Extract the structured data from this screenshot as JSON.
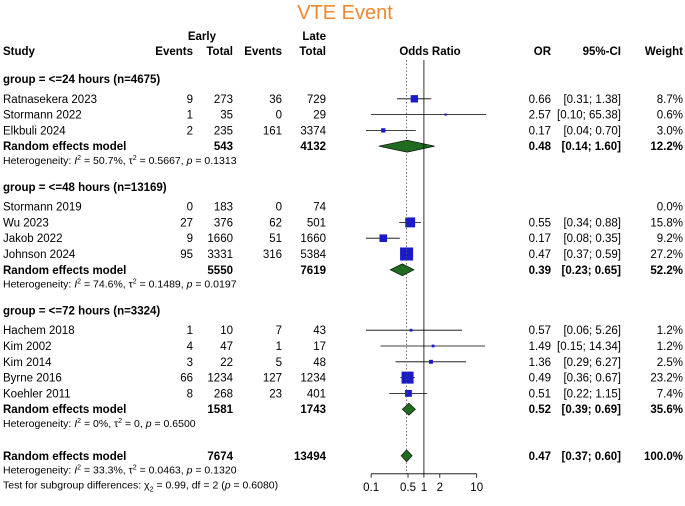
{
  "title": "VTE Event",
  "headers": {
    "study": "Study",
    "early": "Early",
    "late": "Late",
    "events": "Events",
    "total": "Total",
    "odds_ratio": "Odds Ratio",
    "or": "OR",
    "ci": "95%-CI",
    "weight": "Weight"
  },
  "colors": {
    "title": "#f0892d",
    "square": "#1a1acc",
    "diamond": "#1f6b1f",
    "line": "#000000",
    "dotted": "#555555"
  },
  "chart_data": {
    "type": "forest",
    "title": "VTE Event",
    "x_axis": {
      "scale": "log",
      "ticks": [
        0.1,
        0.5,
        1,
        2,
        10
      ],
      "tick_labels": [
        "0.1",
        "0.5",
        "1",
        "2",
        "10"
      ],
      "null_line": 1,
      "dotted_line": 0.47,
      "xlim": [
        0.08,
        15
      ]
    },
    "groups": [
      {
        "label": "group = <=24 hours (n=4675)",
        "studies": [
          {
            "name": "Ratnasekera 2023",
            "e_early": "9",
            "n_early": "273",
            "e_late": "36",
            "n_late": "729",
            "or": 0.66,
            "lo": 0.31,
            "hi": 1.38,
            "or_text": "0.66",
            "ci_text": "[0.31;  1.38]",
            "weight": 8.7,
            "weight_text": "8.7%"
          },
          {
            "name": "Stormann 2022",
            "e_early": "1",
            "n_early": "35",
            "e_late": "0",
            "n_late": "29",
            "or": 2.57,
            "lo": 0.1,
            "hi": 65.38,
            "or_text": "2.57",
            "ci_text": "[0.10; 65.38]",
            "weight": 0.6,
            "weight_text": "0.6%"
          },
          {
            "name": "Elkbuli 2024",
            "e_early": "2",
            "n_early": "235",
            "e_late": "161",
            "n_late": "3374",
            "or": 0.17,
            "lo": 0.04,
            "hi": 0.7,
            "or_text": "0.17",
            "ci_text": "[0.04;  0.70]",
            "weight": 3.0,
            "weight_text": "3.0%"
          }
        ],
        "pooled": {
          "label": "Random effects model",
          "n_early": "543",
          "n_late": "4132",
          "or": 0.48,
          "lo": 0.14,
          "hi": 1.6,
          "or_text": "0.48",
          "ci_text": "[0.14;  1.60]",
          "weight_text": "12.2%"
        },
        "heterogeneity": {
          "prefix": "Heterogeneity: ",
          "i2": "= 50.7%, ",
          "tau2": "= 0.5667, ",
          "p": "= 0.1313"
        }
      },
      {
        "label": "group = <=48 hours (n=13169)",
        "studies": [
          {
            "name": "Stormann 2019",
            "e_early": "0",
            "n_early": "183",
            "e_late": "0",
            "n_late": "74",
            "or": null,
            "lo": null,
            "hi": null,
            "or_text": "",
            "ci_text": "",
            "weight": 0.0,
            "weight_text": "0.0%"
          },
          {
            "name": "Wu 2023",
            "e_early": "27",
            "n_early": "376",
            "e_late": "62",
            "n_late": "501",
            "or": 0.55,
            "lo": 0.34,
            "hi": 0.88,
            "or_text": "0.55",
            "ci_text": "[0.34;  0.88]",
            "weight": 15.8,
            "weight_text": "15.8%"
          },
          {
            "name": "Jakob 2022",
            "e_early": "9",
            "n_early": "1660",
            "e_late": "51",
            "n_late": "1660",
            "or": 0.17,
            "lo": 0.08,
            "hi": 0.35,
            "or_text": "0.17",
            "ci_text": "[0.08;  0.35]",
            "weight": 9.2,
            "weight_text": "9.2%"
          },
          {
            "name": "Johnson 2024",
            "e_early": "95",
            "n_early": "3331",
            "e_late": "316",
            "n_late": "5384",
            "or": 0.47,
            "lo": 0.37,
            "hi": 0.59,
            "or_text": "0.47",
            "ci_text": "[0.37;  0.59]",
            "weight": 27.2,
            "weight_text": "27.2%"
          }
        ],
        "pooled": {
          "label": "Random effects model",
          "n_early": "5550",
          "n_late": "7619",
          "or": 0.39,
          "lo": 0.23,
          "hi": 0.65,
          "or_text": "0.39",
          "ci_text": "[0.23;  0.65]",
          "weight_text": "52.2%"
        },
        "heterogeneity": {
          "prefix": "Heterogeneity: ",
          "i2": "= 74.6%, ",
          "tau2": "= 0.1489, ",
          "p": "= 0.0197"
        }
      },
      {
        "label": "group = <=72 hours (n=3324)",
        "studies": [
          {
            "name": "Hachem 2018",
            "e_early": "1",
            "n_early": "10",
            "e_late": "7",
            "n_late": "43",
            "or": 0.57,
            "lo": 0.06,
            "hi": 5.26,
            "or_text": "0.57",
            "ci_text": "[0.06;  5.26]",
            "weight": 1.2,
            "weight_text": "1.2%"
          },
          {
            "name": "Kim 2002",
            "e_early": "4",
            "n_early": "47",
            "e_late": "1",
            "n_late": "17",
            "or": 1.49,
            "lo": 0.15,
            "hi": 14.34,
            "or_text": "1.49",
            "ci_text": "[0.15; 14.34]",
            "weight": 1.2,
            "weight_text": "1.2%"
          },
          {
            "name": "Kim 2014",
            "e_early": "3",
            "n_early": "22",
            "e_late": "5",
            "n_late": "48",
            "or": 1.36,
            "lo": 0.29,
            "hi": 6.27,
            "or_text": "1.36",
            "ci_text": "[0.29;  6.27]",
            "weight": 2.5,
            "weight_text": "2.5%"
          },
          {
            "name": "Byrne 2016",
            "e_early": "66",
            "n_early": "1234",
            "e_late": "127",
            "n_late": "1234",
            "or": 0.49,
            "lo": 0.36,
            "hi": 0.67,
            "or_text": "0.49",
            "ci_text": "[0.36;  0.67]",
            "weight": 23.2,
            "weight_text": "23.2%"
          },
          {
            "name": "Koehler 2011",
            "e_early": "8",
            "n_early": "268",
            "e_late": "23",
            "n_late": "401",
            "or": 0.51,
            "lo": 0.22,
            "hi": 1.15,
            "or_text": "0.51",
            "ci_text": "[0.22;  1.15]",
            "weight": 7.4,
            "weight_text": "7.4%"
          }
        ],
        "pooled": {
          "label": "Random effects model",
          "n_early": "1581",
          "n_late": "1743",
          "or": 0.52,
          "lo": 0.39,
          "hi": 0.69,
          "or_text": "0.52",
          "ci_text": "[0.39;  0.69]",
          "weight_text": "35.6%"
        },
        "heterogeneity": {
          "prefix": "Heterogeneity: ",
          "i2": "= 0%, ",
          "tau2": "= 0, ",
          "p": "= 0.6500"
        }
      }
    ],
    "overall": {
      "label": "Random effects model",
      "n_early": "7674",
      "n_late": "13494",
      "or": 0.47,
      "lo": 0.37,
      "hi": 0.6,
      "or_text": "0.47",
      "ci_text": "[0.37;  0.60]",
      "weight_text": "100.0%",
      "heterogeneity": {
        "prefix": "Heterogeneity: ",
        "i2": "= 33.3%, ",
        "tau2": "= 0.0463, ",
        "p": "= 0.1320"
      },
      "subgroup_test": {
        "prefix": "Test for subgroup differences: ",
        "chi2": "= 0.99, df = 2 (",
        "p": "= 0.6080)"
      }
    }
  }
}
